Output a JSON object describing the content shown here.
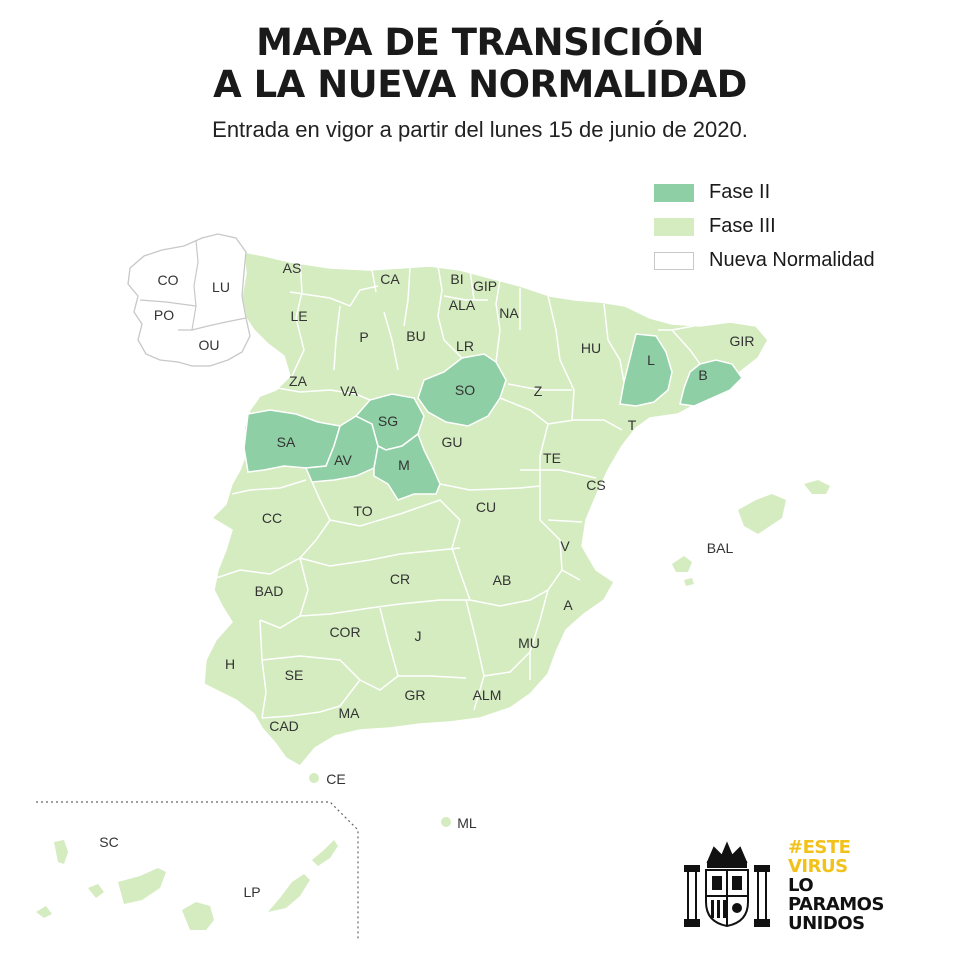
{
  "title": {
    "line1": "MAPA DE TRANSICIÓN",
    "line2": "A LA NUEVA NORMALIDAD"
  },
  "subtitle": "Entrada en vigor a partir del lunes 15 de junio de 2020.",
  "legend": [
    {
      "label": "Fase II",
      "color": "#8ecfa5"
    },
    {
      "label": "Fase III",
      "color": "#d4ecc0"
    },
    {
      "label": "Nueva Normalidad",
      "color": "#ffffff"
    }
  ],
  "provinces": {
    "nueva_normalidad": [
      "CO",
      "LU",
      "PO",
      "OU"
    ],
    "fase_ii": [
      "L",
      "B",
      "SO",
      "SG",
      "SA",
      "AV",
      "M"
    ],
    "fase_iii": [
      "AS",
      "CA",
      "BI",
      "GIP",
      "ALA",
      "NA",
      "LE",
      "P",
      "BU",
      "LR",
      "HU",
      "GIR",
      "ZA",
      "VA",
      "Z",
      "T",
      "GU",
      "TE",
      "CS",
      "CC",
      "TO",
      "CU",
      "V",
      "BAL",
      "BAD",
      "CR",
      "AB",
      "A",
      "COR",
      "J",
      "MU",
      "H",
      "SE",
      "GR",
      "ALM",
      "CAD",
      "MA",
      "CE",
      "ML",
      "SC",
      "LP"
    ]
  },
  "campaign": {
    "line1": "#ESTE",
    "line2": "VIRUS",
    "line3": "LO",
    "line4": "PARAMOS",
    "line5": "UNIDOS"
  },
  "colors": {
    "fase_ii": "#8ecfa5",
    "fase_iii": "#d4ecc0",
    "border": "#ffffff",
    "outline": "#c8c8c8",
    "accent": "#f2c21b"
  }
}
